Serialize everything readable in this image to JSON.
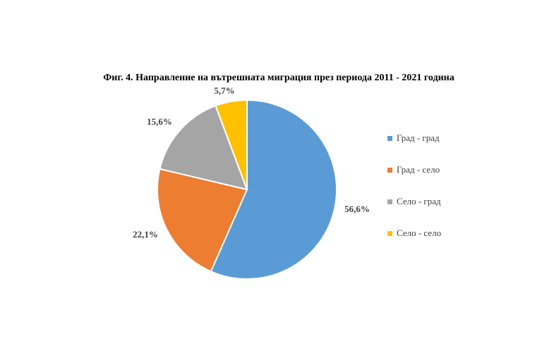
{
  "chart_data": {
    "type": "pie",
    "title": "Фиг. 4. Направление на вътрешната миграция през периода 2011 - 2021 година",
    "categories": [
      "Град - град",
      "Град - село",
      "Село - град",
      "Село - село"
    ],
    "values": [
      56.6,
      22.1,
      15.6,
      5.7
    ],
    "value_labels": [
      "56,6%",
      "22,1%",
      "15,6%",
      "5,7%"
    ],
    "colors": [
      "#5b9bd5",
      "#ed7d31",
      "#a5a5a5",
      "#ffc000"
    ],
    "legend": "right",
    "start": "top-clockwise"
  }
}
